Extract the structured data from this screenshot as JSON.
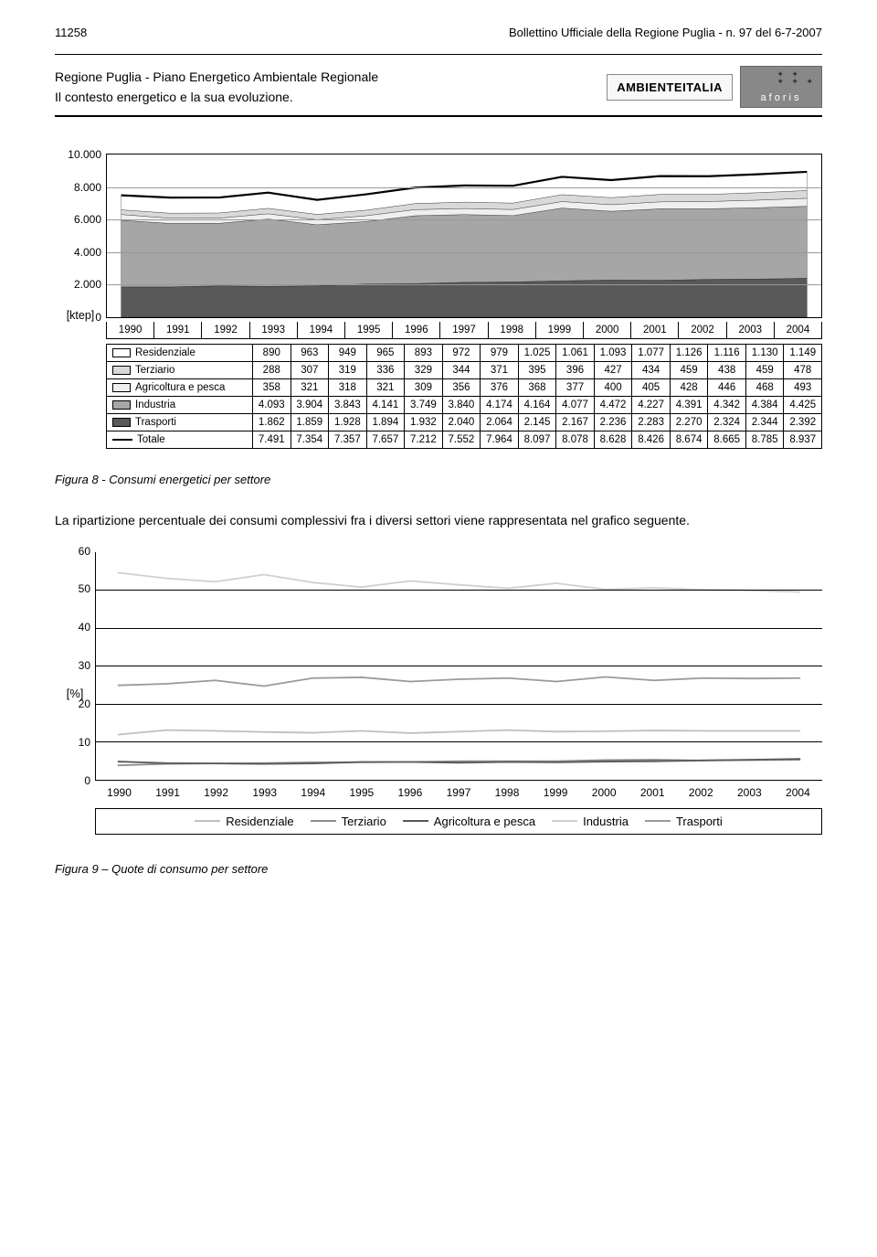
{
  "header": {
    "page_number": "11258",
    "bollettino": "Bollettino Ufficiale della Regione Puglia - n. 97 del 6-7-2007"
  },
  "doc_heading": {
    "line1": "Regione Puglia - Piano Energetico Ambientale Regionale",
    "line2": "Il contesto energetico e la sua evoluzione.",
    "logo1": "AMBIENTEITALIA",
    "logo2": "aforis"
  },
  "chart1": {
    "ylabel": "[ktep]",
    "ylim": [
      0,
      10000
    ],
    "yticks": [
      "10.000",
      "8.000",
      "6.000",
      "4.000",
      "2.000",
      "0"
    ],
    "years": [
      "1990",
      "1991",
      "1992",
      "1993",
      "1994",
      "1995",
      "1996",
      "1997",
      "1998",
      "1999",
      "2000",
      "2001",
      "2002",
      "2003",
      "2004"
    ],
    "series": [
      {
        "label": "Residenziale",
        "swatch": "#ffffff",
        "values": [
          "890",
          "963",
          "949",
          "965",
          "893",
          "972",
          "979",
          "1.025",
          "1.061",
          "1.093",
          "1.077",
          "1.126",
          "1.116",
          "1.130",
          "1.149"
        ],
        "nums": [
          890,
          963,
          949,
          965,
          893,
          972,
          979,
          1025,
          1061,
          1093,
          1077,
          1126,
          1116,
          1130,
          1149
        ]
      },
      {
        "label": "Terziario",
        "swatch": "#d9d9d9",
        "values": [
          "288",
          "307",
          "319",
          "336",
          "329",
          "344",
          "371",
          "395",
          "396",
          "427",
          "434",
          "459",
          "438",
          "459",
          "478"
        ],
        "nums": [
          288,
          307,
          319,
          336,
          329,
          344,
          371,
          395,
          396,
          427,
          434,
          459,
          438,
          459,
          478
        ]
      },
      {
        "label": "Agricoltura e pesca",
        "swatch": "#efefef",
        "values": [
          "358",
          "321",
          "318",
          "321",
          "309",
          "356",
          "376",
          "368",
          "377",
          "400",
          "405",
          "428",
          "446",
          "468",
          "493"
        ],
        "nums": [
          358,
          321,
          318,
          321,
          309,
          356,
          376,
          368,
          377,
          400,
          405,
          428,
          446,
          468,
          493
        ]
      },
      {
        "label": "Industria",
        "swatch": "#a6a6a6",
        "values": [
          "4.093",
          "3.904",
          "3.843",
          "4.141",
          "3.749",
          "3.840",
          "4.174",
          "4.164",
          "4.077",
          "4.472",
          "4.227",
          "4.391",
          "4.342",
          "4.384",
          "4.425"
        ],
        "nums": [
          4093,
          3904,
          3843,
          4141,
          3749,
          3840,
          4174,
          4164,
          4077,
          4472,
          4227,
          4391,
          4342,
          4384,
          4425
        ]
      },
      {
        "label": "Trasporti",
        "swatch": "#595959",
        "values": [
          "1.862",
          "1.859",
          "1.928",
          "1.894",
          "1.932",
          "2.040",
          "2.064",
          "2.145",
          "2.167",
          "2.236",
          "2.283",
          "2.270",
          "2.324",
          "2.344",
          "2.392"
        ],
        "nums": [
          1862,
          1859,
          1928,
          1894,
          1932,
          2040,
          2064,
          2145,
          2167,
          2236,
          2283,
          2270,
          2324,
          2344,
          2392
        ]
      },
      {
        "label": "Totale",
        "type": "line",
        "swatch": "#000000",
        "values": [
          "7.491",
          "7.354",
          "7.357",
          "7.657",
          "7.212",
          "7.552",
          "7.964",
          "8.097",
          "8.078",
          "8.628",
          "8.426",
          "8.674",
          "8.665",
          "8.785",
          "8.937"
        ],
        "nums": [
          7491,
          7354,
          7357,
          7657,
          7212,
          7552,
          7964,
          8097,
          8078,
          8628,
          8426,
          8674,
          8665,
          8785,
          8937
        ]
      }
    ],
    "stack_order": [
      "Trasporti",
      "Industria",
      "Agricoltura e pesca",
      "Terziario",
      "Residenziale"
    ],
    "colors": {
      "Trasporti": "#595959",
      "Industria": "#a6a6a6",
      "Agricoltura e pesca": "#efefef",
      "Terziario": "#d9d9d9",
      "Residenziale": "#ffffff",
      "Totale": "#000000"
    }
  },
  "caption1": "Figura 8 - Consumi energetici per settore",
  "paragraph": "La ripartizione percentuale dei consumi complessivi fra i diversi settori viene rappresentata nel grafico seguente.",
  "chart2": {
    "ylabel": "[%]",
    "ylim": [
      0,
      60
    ],
    "ytick_step": 10,
    "yticks": [
      "60",
      "50",
      "40",
      "30",
      "20",
      "10",
      "0"
    ],
    "years": [
      "1990",
      "1991",
      "1992",
      "1993",
      "1994",
      "1995",
      "1996",
      "1997",
      "1998",
      "1999",
      "2000",
      "2001",
      "2002",
      "2003",
      "2004"
    ],
    "series": [
      {
        "label": "Residenziale",
        "color": "#bfbfbf",
        "vals": [
          11.9,
          13.1,
          12.9,
          12.6,
          12.4,
          12.9,
          12.3,
          12.7,
          13.1,
          12.7,
          12.8,
          13.0,
          12.9,
          12.9,
          12.9
        ]
      },
      {
        "label": "Terziario",
        "color": "#8c8c8c",
        "vals": [
          3.8,
          4.2,
          4.3,
          4.4,
          4.6,
          4.6,
          4.7,
          4.9,
          4.9,
          4.9,
          5.2,
          5.3,
          5.1,
          5.2,
          5.3
        ]
      },
      {
        "label": "Agricoltura e pesca",
        "color": "#595959",
        "vals": [
          4.8,
          4.4,
          4.3,
          4.2,
          4.3,
          4.7,
          4.7,
          4.5,
          4.7,
          4.6,
          4.8,
          4.9,
          5.1,
          5.3,
          5.5
        ]
      },
      {
        "label": "Industria",
        "color": "#d0d0d0",
        "vals": [
          54.6,
          53.1,
          52.2,
          54.1,
          52.0,
          50.8,
          52.4,
          51.4,
          50.5,
          51.8,
          50.2,
          50.6,
          50.1,
          49.9,
          49.5
        ]
      },
      {
        "label": "Trasporti",
        "color": "#9a9a9a",
        "vals": [
          24.9,
          25.3,
          26.2,
          24.7,
          26.8,
          27.0,
          25.9,
          26.5,
          26.8,
          25.9,
          27.1,
          26.2,
          26.8,
          26.7,
          26.8
        ]
      }
    ]
  },
  "caption2": "Figura 9 – Quote di consumo per settore"
}
